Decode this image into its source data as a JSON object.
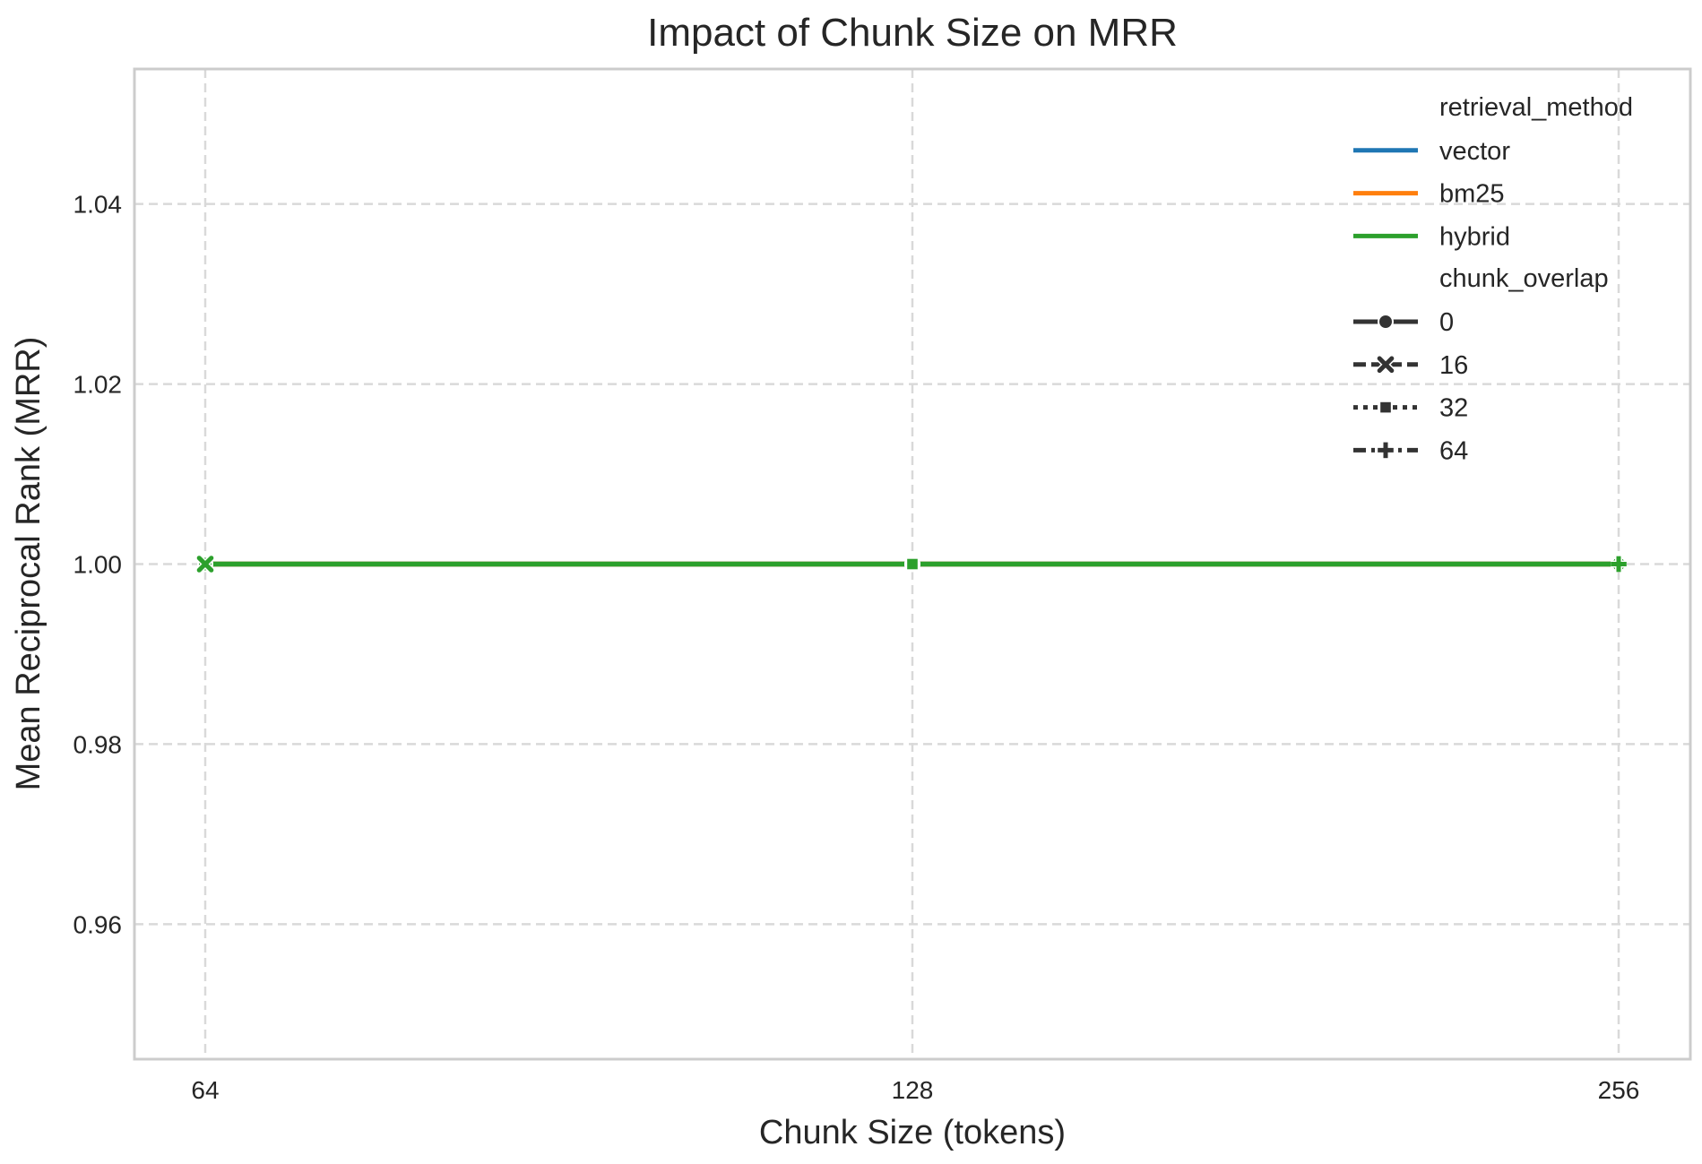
{
  "chart_data": {
    "type": "line",
    "title": "Impact of Chunk Size on MRR",
    "xlabel": "Chunk Size (tokens)",
    "ylabel": "Mean Reciprocal Rank (MRR)",
    "x_ticks": [
      "64",
      "128",
      "256"
    ],
    "y_ticks": [
      0.96,
      0.98,
      1.0,
      1.02,
      1.04
    ],
    "y_tick_labels": [
      "0.96",
      "0.98",
      "1.00",
      "1.02",
      "1.04"
    ],
    "ylim": [
      0.945,
      1.055
    ],
    "grid": true,
    "legend_position": "top-right",
    "legend": {
      "hue_title": "retrieval_method",
      "hue_entries": [
        {
          "label": "vector",
          "color": "#1f77b4"
        },
        {
          "label": "bm25",
          "color": "#ff7f0e"
        },
        {
          "label": "hybrid",
          "color": "#2ca02c"
        }
      ],
      "style_title": "chunk_overlap",
      "style_entries": [
        {
          "label": "0",
          "marker": "circle",
          "dash": "solid"
        },
        {
          "label": "16",
          "marker": "x",
          "dash": "dashed"
        },
        {
          "label": "32",
          "marker": "square",
          "dash": "dotted"
        },
        {
          "label": "64",
          "marker": "plus",
          "dash": "dashdot"
        }
      ]
    },
    "series": [
      {
        "method": "vector",
        "overlap": "0",
        "color": "#1f77b4",
        "marker": "circle",
        "points": [
          {
            "x": "64",
            "y": 1.0
          },
          {
            "x": "128",
            "y": 1.0
          },
          {
            "x": "256",
            "y": 1.0
          }
        ]
      },
      {
        "method": "bm25",
        "overlap": "0",
        "color": "#ff7f0e",
        "marker": "circle",
        "points": [
          {
            "x": "64",
            "y": 1.0
          },
          {
            "x": "128",
            "y": 1.0
          },
          {
            "x": "256",
            "y": 1.0
          }
        ]
      },
      {
        "method": "hybrid",
        "overlap": "0",
        "color": "#2ca02c",
        "marker": "circle",
        "points": [
          {
            "x": "64",
            "y": 1.0
          },
          {
            "x": "128",
            "y": 1.0
          },
          {
            "x": "256",
            "y": 1.0
          }
        ]
      },
      {
        "method": "hybrid",
        "overlap": "16",
        "color": "#2ca02c",
        "marker": "x",
        "points": [
          {
            "x": "64",
            "y": 1.0
          }
        ]
      },
      {
        "method": "hybrid",
        "overlap": "32",
        "color": "#2ca02c",
        "marker": "square",
        "points": [
          {
            "x": "128",
            "y": 1.0
          }
        ]
      },
      {
        "method": "hybrid",
        "overlap": "64",
        "color": "#2ca02c",
        "marker": "plus",
        "points": [
          {
            "x": "256",
            "y": 1.0
          }
        ]
      }
    ]
  }
}
